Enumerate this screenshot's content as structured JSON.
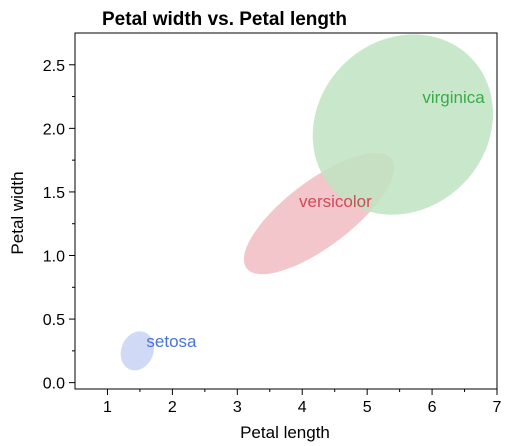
{
  "chart_data": {
    "type": "scatter",
    "title": "Petal width vs. Petal length",
    "xlabel": "Petal length",
    "ylabel": "Petal width",
    "xlim": [
      0.5,
      7.0
    ],
    "ylim": [
      -0.05,
      2.75
    ],
    "x_ticks": [
      1,
      2,
      3,
      4,
      5,
      6,
      7
    ],
    "x_tick_labels": [
      "1",
      "2",
      "3",
      "4",
      "5",
      "6",
      "7"
    ],
    "y_ticks": [
      0.0,
      0.5,
      1.0,
      1.5,
      2.0,
      2.5
    ],
    "y_tick_labels": [
      "0.0",
      "0.5",
      "1.0",
      "1.5",
      "2.0",
      "2.5"
    ],
    "grid": false,
    "legend": "none",
    "groups": [
      {
        "name": "setosa",
        "color": "#4c72d8",
        "fill": "#c8d3f5",
        "ellipse": {
          "cx": 1.46,
          "cy": 0.25,
          "rx": 0.44,
          "ry": 0.18,
          "angle_deg": 68
        },
        "label_x": 1.6,
        "label_y": 0.28
      },
      {
        "name": "versicolor",
        "color": "#d04a5a",
        "fill": "#f0bcc2",
        "ellipse": {
          "cx": 4.26,
          "cy": 1.33,
          "rx": 2.0,
          "ry": 0.37,
          "angle_deg": 37
        },
        "label_x": 3.95,
        "label_y": 1.38
      },
      {
        "name": "virginica",
        "color": "#3aaa4a",
        "fill": "#bfe4c2",
        "ellipse": {
          "cx": 5.55,
          "cy": 2.03,
          "rx": 2.1,
          "ry": 0.95,
          "angle_deg": 45
        },
        "label_x": 5.85,
        "label_y": 2.2
      }
    ]
  }
}
